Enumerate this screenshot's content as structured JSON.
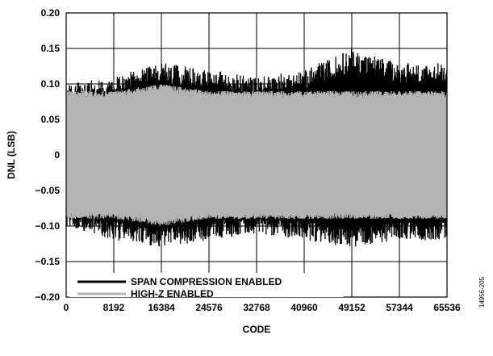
{
  "chart_data": {
    "type": "line",
    "title": "",
    "xlabel": "CODE",
    "ylabel": "DNL (LSB)",
    "xlim": [
      0,
      65536
    ],
    "ylim": [
      -0.2,
      0.2
    ],
    "x_ticks": [
      0,
      8192,
      16384,
      24576,
      32768,
      40960,
      49152,
      57344,
      65536
    ],
    "x_tick_labels": [
      "0",
      "8192",
      "16384",
      "24576",
      "32768",
      "40960",
      "49152",
      "57344",
      "65536"
    ],
    "y_ticks": [
      0.2,
      0.15,
      0.1,
      0.05,
      0,
      -0.05,
      -0.1,
      -0.15,
      -0.2
    ],
    "y_tick_labels": [
      "0.20",
      "0.15",
      "0.10",
      "0.05",
      "0",
      "−0.05",
      "−0.10",
      "−0.15",
      "−0.20"
    ],
    "grid": true,
    "legend": {
      "placement": "bottom-left",
      "entries": [
        {
          "name": "SPAN COMPRESSION ENABLED",
          "color": "#000000"
        },
        {
          "name": "HIGH-Z ENABLED",
          "color": "#b3b3b3"
        }
      ]
    },
    "series": [
      {
        "name": "SPAN COMPRESSION ENABLED",
        "color": "#000000",
        "envelope": {
          "x": [
            0,
            8192,
            16384,
            24576,
            32768,
            40960,
            49152,
            57344,
            65536
          ],
          "upper": [
            0.1,
            0.11,
            0.13,
            0.12,
            0.11,
            0.12,
            0.15,
            0.13,
            0.13
          ],
          "lower": [
            -0.1,
            -0.12,
            -0.13,
            -0.12,
            -0.11,
            -0.12,
            -0.13,
            -0.12,
            -0.12
          ]
        }
      },
      {
        "name": "HIGH-Z ENABLED",
        "color": "#b3b3b3",
        "envelope": {
          "x": [
            0,
            8192,
            16384,
            24576,
            32768,
            40960,
            49152,
            57344,
            65536
          ],
          "upper": [
            0.09,
            0.09,
            0.1,
            0.09,
            0.09,
            0.09,
            0.09,
            0.09,
            0.09
          ],
          "lower": [
            -0.09,
            -0.09,
            -0.1,
            -0.09,
            -0.09,
            -0.09,
            -0.09,
            -0.09,
            -0.09
          ]
        }
      }
    ]
  },
  "figure_id": "14956-205"
}
